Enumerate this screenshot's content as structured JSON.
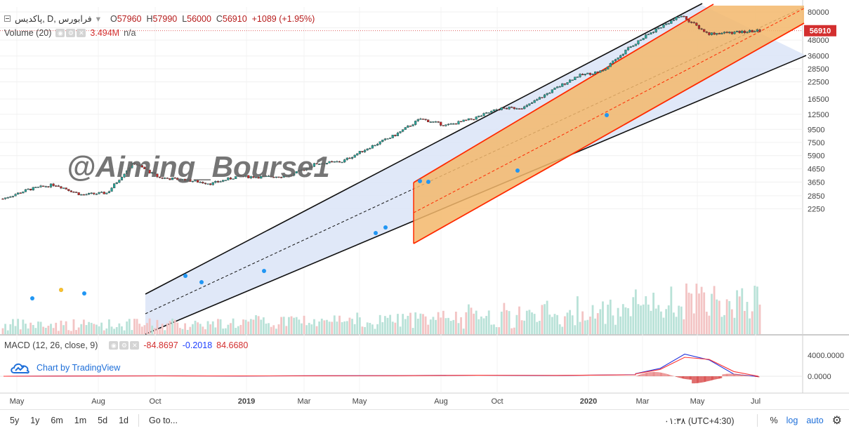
{
  "header": {
    "symbol": "پاکدیس, D, فرابورس",
    "open_label": "O",
    "open": "57960",
    "high_label": "H",
    "high": "57990",
    "low_label": "L",
    "low": "56000",
    "close_label": "C",
    "close": "56910",
    "change": "+1089 (+1.95%)"
  },
  "volume_legend": {
    "name": "Volume (20)",
    "value": "3.494M",
    "ma": "n/a"
  },
  "macd_legend": {
    "name": "MACD (12, 26, close, 9)",
    "v1": "-84.8697",
    "v2": "-0.2018",
    "v3": "84.6680"
  },
  "watermark": "@Aiming_Bourse1",
  "price_tag": "56910",
  "tv_logo_text": "Chart by TradingView",
  "bottombar": {
    "timeframes": [
      "5y",
      "1y",
      "6m",
      "1m",
      "5d",
      "1d"
    ],
    "goto": "Go to...",
    "clock": "۰۱:۳۸ (UTC+4:30)",
    "pct": "%",
    "log": "log",
    "auto": "auto"
  },
  "colors": {
    "up": "#26a69a",
    "down": "#c62828",
    "channel_fill": "#dbe4f7",
    "inner_fill": "#f3b76b",
    "channel_red": "#ff2a00",
    "macd": "#2233dd",
    "signal": "#ff3333"
  },
  "chart_data": [
    {
      "type": "candlestick",
      "title": "پاکدیس, D, فرابورس",
      "scale": "log",
      "y_ticks": [
        80000,
        60000,
        48000,
        36000,
        28500,
        22500,
        16500,
        12500,
        9500,
        7500,
        5900,
        4650,
        3650,
        2850,
        2250
      ],
      "x_ticks": [
        "May",
        "Aug",
        "Oct",
        "2019",
        "Mar",
        "May",
        "Aug",
        "Oct",
        "2020",
        "Mar",
        "May",
        "Jul"
      ],
      "last_close": 56910,
      "approx_close_path": [
        [
          "May 2018",
          2700
        ],
        [
          "Jun 2018",
          3200
        ],
        [
          "Jul 2018",
          3500
        ],
        [
          "Aug 2018",
          2900
        ],
        [
          "Sep 2018",
          3000
        ],
        [
          "Sep 2018 end",
          5200
        ],
        [
          "Oct 2018",
          3950
        ],
        [
          "Nov 2018",
          3800
        ],
        [
          "Dec 2018",
          3550
        ],
        [
          "Jan 2019",
          4050
        ],
        [
          "Feb 2019",
          4000
        ],
        [
          "Mar 2019",
          4100
        ],
        [
          "Apr 2019",
          5100
        ],
        [
          "May 2019",
          5300
        ],
        [
          "Jun 2019",
          6800
        ],
        [
          "Jul 2019",
          8500
        ],
        [
          "Jul 2019 end",
          11500
        ],
        [
          "Aug 2019",
          10200
        ],
        [
          "Sep 2019",
          11500
        ],
        [
          "Oct 2019",
          13800
        ],
        [
          "Nov 2019",
          14200
        ],
        [
          "Dec 2019",
          19000
        ],
        [
          "Jan 2020",
          25000
        ],
        [
          "Feb 2020",
          27500
        ],
        [
          "Mar 2020",
          42000
        ],
        [
          "Apr 2020",
          58000
        ],
        [
          "May 2020",
          75000
        ],
        [
          "May 2020 end",
          54000
        ],
        [
          "Jun 2020",
          55000
        ],
        [
          "Jul 2020",
          56910
        ]
      ],
      "annotations": [
        "Regression channel (black lines, blue fill)",
        "Inner channel (red lines, orange fill)"
      ]
    },
    {
      "type": "bar",
      "title": "Volume (20)",
      "last_value": "3.494M"
    },
    {
      "type": "line",
      "title": "MACD (12, 26, close, 9)",
      "y_ticks": [
        4000.0,
        0.0
      ],
      "series": [
        {
          "name": "MACD",
          "values": [
            0,
            50,
            80,
            40,
            100,
            120,
            200,
            150,
            300,
            500,
            1500,
            4200,
            3100,
            400,
            -84.8697
          ]
        },
        {
          "name": "Signal",
          "values": [
            0,
            40,
            70,
            50,
            90,
            110,
            180,
            160,
            260,
            450,
            1300,
            3600,
            3200,
            900,
            -0.2018
          ]
        }
      ]
    }
  ]
}
